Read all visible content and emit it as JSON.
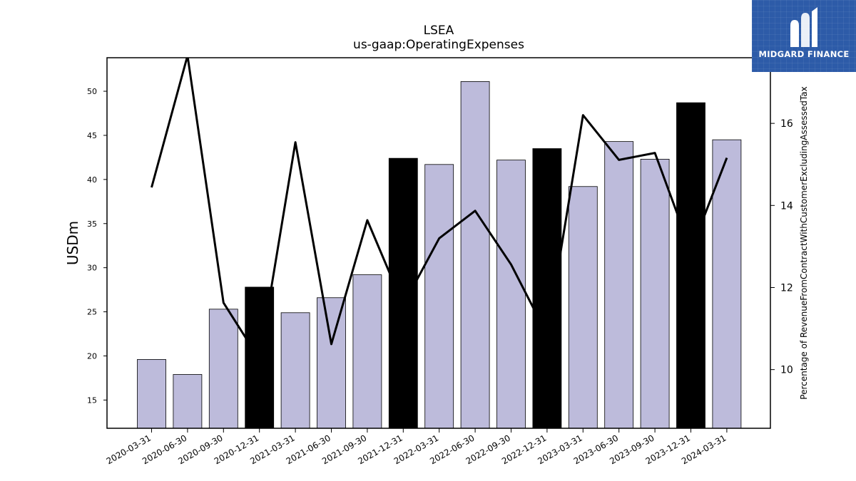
{
  "chart_data": {
    "type": "bar",
    "title": "LSEA",
    "subtitle": "us-gaap:OperatingExpenses",
    "ylabel": "USDm",
    "y2label": "Percentage of RevenueFromContractWithCustomerExcludingAssessedTax",
    "ylim": [
      11.8,
      53.8
    ],
    "y2lim": [
      8.57,
      17.6
    ],
    "yticks": [
      15,
      20,
      25,
      30,
      35,
      40,
      45,
      50
    ],
    "y2ticks": [
      10,
      12,
      14,
      16
    ],
    "categories": [
      "2020-03-31",
      "2020-06-30",
      "2020-09-30",
      "2020-12-31",
      "2021-03-31",
      "2021-06-30",
      "2021-09-30",
      "2021-12-31",
      "2022-03-31",
      "2022-06-30",
      "2022-09-30",
      "2022-12-31",
      "2023-03-31",
      "2023-06-30",
      "2023-09-30",
      "2023-12-31",
      "2024-03-31"
    ],
    "series": [
      {
        "type": "bar",
        "values": [
          19.6,
          17.9,
          25.3,
          27.8,
          24.9,
          26.6,
          29.2,
          42.4,
          41.7,
          51.1,
          42.2,
          43.5,
          39.2,
          44.3,
          42.3,
          48.7,
          44.5
        ],
        "highlight": [
          false,
          false,
          false,
          true,
          false,
          false,
          false,
          true,
          false,
          false,
          false,
          true,
          false,
          false,
          false,
          true,
          false
        ]
      },
      {
        "type": "line",
        "axis": "right",
        "values": [
          14.44,
          17.65,
          11.63,
          10.25,
          15.54,
          10.62,
          13.64,
          11.57,
          13.2,
          13.87,
          12.56,
          10.85,
          16.2,
          15.11,
          15.28,
          12.9,
          15.16
        ]
      }
    ],
    "colors": {
      "bar": "#bdbbdb",
      "bar_highlight": "#000000",
      "line": "#000000"
    },
    "grid": false
  },
  "logo": {
    "text": "MIDGARD FINANCE",
    "color": "#2d5ba8"
  }
}
